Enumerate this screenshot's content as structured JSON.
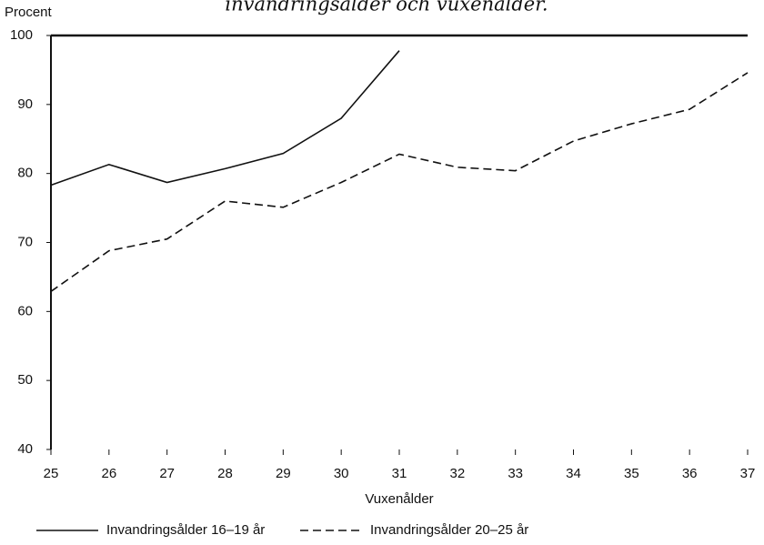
{
  "chart_data": {
    "type": "line",
    "title": "invandringsålder och vuxenålder.",
    "y_label": "Procent",
    "x_label": "Vuxenålder",
    "x": [
      25,
      26,
      27,
      28,
      29,
      30,
      31,
      32,
      33,
      34,
      35,
      36,
      37
    ],
    "series": [
      {
        "name": "Invandringsålder 16–19 år",
        "color": "#111111",
        "dash": "solid",
        "values": [
          78.3,
          81.3,
          78.7,
          80.7,
          82.9,
          88,
          97.8,
          null,
          null,
          null,
          null,
          null,
          null
        ]
      },
      {
        "name": "Invandringsålder 20–25 år",
        "color": "#111111",
        "dash": "dashed",
        "values": [
          62.9,
          68.8,
          70.5,
          76,
          75.1,
          78.7,
          82.8,
          80.9,
          80.4,
          84.7,
          87.2,
          89.3,
          94.6
        ]
      }
    ],
    "xlim": [
      25,
      37
    ],
    "xticks": [
      25,
      26,
      27,
      28,
      29,
      30,
      31,
      32,
      33,
      34,
      35,
      36,
      37
    ],
    "ylim": [
      40,
      100
    ],
    "yticks": [
      40,
      50,
      60,
      70,
      80,
      90,
      100
    ],
    "grid": false,
    "legend": "bottom"
  }
}
